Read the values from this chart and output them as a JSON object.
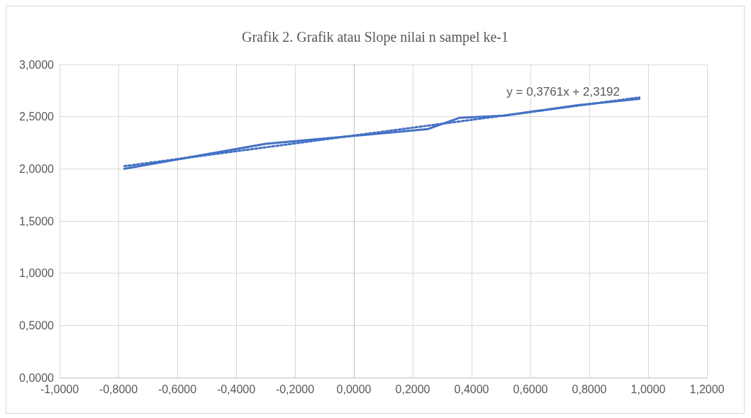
{
  "chart_data": {
    "type": "line",
    "title": "Grafik 2. Grafik atau Slope nilai n sampel ke-1",
    "series": [
      {
        "color": "#4472c4",
        "x": [
          -0.78,
          -0.3,
          0.25,
          0.36,
          0.51,
          0.76,
          0.97
        ],
        "values": [
          2.0,
          2.24,
          2.38,
          2.49,
          2.51,
          2.61,
          2.67
        ]
      },
      {
        "type": "line",
        "line_style": "dotted",
        "color": "#4472c4",
        "x": [
          -0.78,
          0.97
        ],
        "values": [
          2.026,
          2.684
        ]
      }
    ],
    "annotations": [
      "y = 0,3761x + 2,3192"
    ],
    "xlim": [
      -1,
      1.2
    ],
    "xticks": [
      {
        "value": -1,
        "label": "-1,0000"
      },
      {
        "value": -0.8,
        "label": "-0,8000"
      },
      {
        "value": -0.6,
        "label": "-0,6000"
      },
      {
        "value": -0.4,
        "label": "-0,4000"
      },
      {
        "value": -0.2,
        "label": "-0,2000"
      },
      {
        "value": 0,
        "label": "0,0000"
      },
      {
        "value": 0.2,
        "label": "0,2000"
      },
      {
        "value": 0.4,
        "label": "0,4000"
      },
      {
        "value": 0.6,
        "label": "0,6000"
      },
      {
        "value": 0.8,
        "label": "0,8000"
      },
      {
        "value": 1,
        "label": "1,0000"
      },
      {
        "value": 1.2,
        "label": "1,2000"
      }
    ],
    "ylim": [
      0,
      3
    ],
    "yticks": [
      {
        "value": 0,
        "label": "0,0000"
      },
      {
        "value": 0.5,
        "label": "0,5000"
      },
      {
        "value": 1,
        "label": "1,0000"
      },
      {
        "value": 1.5,
        "label": "1,5000"
      },
      {
        "value": 2,
        "label": "2,0000"
      },
      {
        "value": 2.5,
        "label": "2,5000"
      },
      {
        "value": 3,
        "label": "3,0000"
      }
    ],
    "grid": true,
    "marker": "none",
    "line_style": "solid"
  }
}
